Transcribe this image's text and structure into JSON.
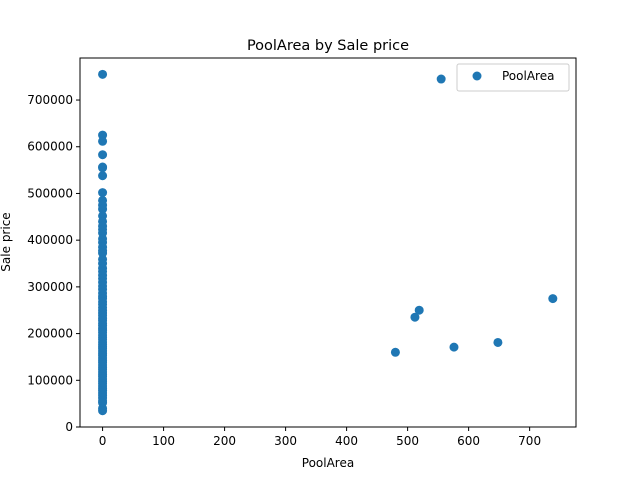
{
  "chart_data": {
    "type": "scatter",
    "title": "PoolArea by Sale price",
    "xlabel": "PoolArea",
    "ylabel": "Sale price",
    "xlim": [
      -37,
      776
    ],
    "ylim": [
      0,
      790000
    ],
    "xticks": [
      0,
      100,
      200,
      300,
      400,
      500,
      600,
      700
    ],
    "yticks": [
      0,
      100000,
      200000,
      300000,
      400000,
      500000,
      600000,
      700000
    ],
    "legend": {
      "position": "top-right",
      "entries": [
        "PoolArea"
      ]
    },
    "grid": false,
    "series": [
      {
        "name": "PoolArea",
        "color": "#1f77b4",
        "points": [
          [
            0,
            755000
          ],
          [
            0,
            625000
          ],
          [
            0,
            611657
          ],
          [
            0,
            582933
          ],
          [
            0,
            556581
          ],
          [
            0,
            555000
          ],
          [
            0,
            538000
          ],
          [
            0,
            501837
          ],
          [
            0,
            485000
          ],
          [
            0,
            475000
          ],
          [
            0,
            466500
          ],
          [
            0,
            451950
          ],
          [
            0,
            440000
          ],
          [
            0,
            430000
          ],
          [
            0,
            423000
          ],
          [
            0,
            415298
          ],
          [
            0,
            402861
          ],
          [
            0,
            395000
          ],
          [
            0,
            385000
          ],
          [
            0,
            377500
          ],
          [
            0,
            372402
          ],
          [
            0,
            359100
          ],
          [
            0,
            350000
          ],
          [
            0,
            340000
          ],
          [
            0,
            333168
          ],
          [
            0,
            325000
          ],
          [
            0,
            318000
          ],
          [
            0,
            310000
          ],
          [
            0,
            302000
          ],
          [
            0,
            295000
          ],
          [
            0,
            287000
          ],
          [
            0,
            280000
          ],
          [
            0,
            275000
          ],
          [
            0,
            268000
          ],
          [
            0,
            262500
          ],
          [
            0,
            256000
          ],
          [
            0,
            250000
          ],
          [
            0,
            244000
          ],
          [
            0,
            239000
          ],
          [
            0,
            233000
          ],
          [
            0,
            228000
          ],
          [
            0,
            222000
          ],
          [
            0,
            217000
          ],
          [
            0,
            212000
          ],
          [
            0,
            207500
          ],
          [
            0,
            202500
          ],
          [
            0,
            197000
          ],
          [
            0,
            192000
          ],
          [
            0,
            187500
          ],
          [
            0,
            182000
          ],
          [
            0,
            177000
          ],
          [
            0,
            172500
          ],
          [
            0,
            168000
          ],
          [
            0,
            163000
          ],
          [
            0,
            158000
          ],
          [
            0,
            153000
          ],
          [
            0,
            148000
          ],
          [
            0,
            143000
          ],
          [
            0,
            138000
          ],
          [
            0,
            133000
          ],
          [
            0,
            128000
          ],
          [
            0,
            123000
          ],
          [
            0,
            118000
          ],
          [
            0,
            113000
          ],
          [
            0,
            108000
          ],
          [
            0,
            103000
          ],
          [
            0,
            98000
          ],
          [
            0,
            93000
          ],
          [
            0,
            88000
          ],
          [
            0,
            83000
          ],
          [
            0,
            78000
          ],
          [
            0,
            73000
          ],
          [
            0,
            68000
          ],
          [
            0,
            62000
          ],
          [
            0,
            56000
          ],
          [
            0,
            52000
          ],
          [
            0,
            40000
          ],
          [
            0,
            34900
          ],
          [
            480,
            160000
          ],
          [
            512,
            235000
          ],
          [
            519,
            250000
          ],
          [
            555,
            745000
          ],
          [
            576,
            171000
          ],
          [
            648,
            181000
          ],
          [
            738,
            274970
          ]
        ]
      }
    ]
  }
}
